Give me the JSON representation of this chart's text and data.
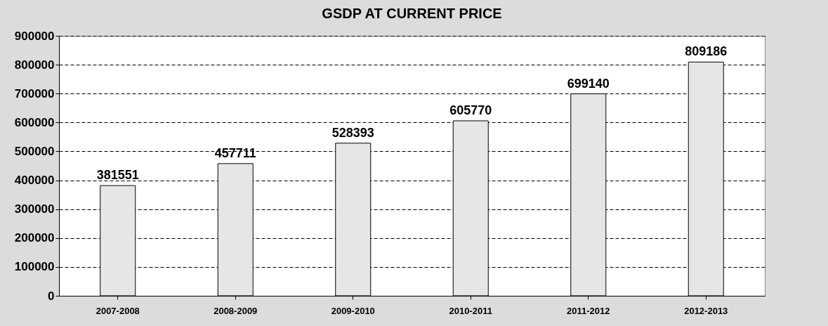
{
  "chart_data": {
    "type": "bar",
    "title": "GSDP AT CURRENT PRICE",
    "categories": [
      "2007-2008",
      "2008-2009",
      "2009-2010",
      "2010-2011",
      "2011-2012",
      "2012-2013"
    ],
    "values": [
      381551,
      457711,
      528393,
      605770,
      699140,
      809186
    ],
    "color": "#e6e6e6",
    "ylim": [
      0,
      900000
    ],
    "yticks": [
      0,
      100000,
      200000,
      300000,
      400000,
      500000,
      600000,
      700000,
      800000,
      900000
    ],
    "grid": "y",
    "data_labels": true
  }
}
